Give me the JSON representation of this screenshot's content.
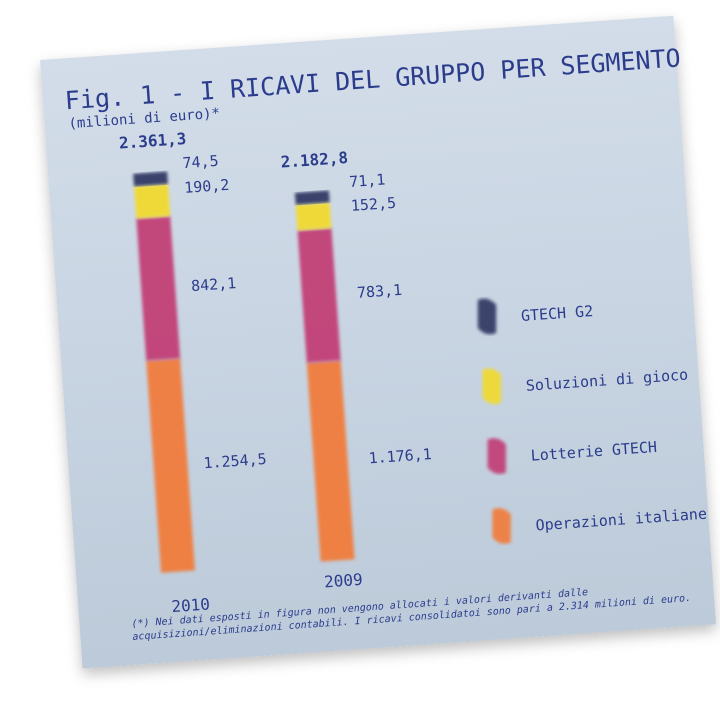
{
  "title": "Fig. 1 - I RICAVI DEL GRUPPO PER SEGMENTO",
  "subtitle": "(milioni di euro)*",
  "footnote_line1": "(*) Nei dati esposti in figura non vengono allocati i valori derivanti dalle",
  "footnote_line2": "acquisizioni/eliminazioni contabili. I ricavi consolidatoi sono pari a 2.314 milioni di euro.",
  "colors": {
    "title": "#2b3c8c",
    "gtech_g2": "#2e3560",
    "soluzioni_di_gioco": "#f2da2c",
    "lotterie_gtech": "#c23a73",
    "operazioni_italiane": "#f27a38"
  },
  "chart_data": {
    "type": "bar",
    "stacked": true,
    "orientation": "vertical",
    "title": "Fig. 1 - I RICAVI DEL GRUPPO PER SEGMENTO",
    "subtitle": "(milioni di euro)*",
    "categories": [
      "2010",
      "2009"
    ],
    "totals": [
      "2.361,3",
      "2.182,8"
    ],
    "total_values": [
      2361.3,
      2182.8
    ],
    "series": [
      {
        "name": "Operazioni italiane",
        "values": [
          1254.5,
          1176.1
        ],
        "labels": [
          "1.254,5",
          "1.176,1"
        ],
        "color": "#f27a38"
      },
      {
        "name": "Lotterie GTECH",
        "values": [
          842.1,
          783.1
        ],
        "labels": [
          "842,1",
          "783,1"
        ],
        "color": "#c23a73"
      },
      {
        "name": "Soluzioni di gioco",
        "values": [
          190.2,
          152.5
        ],
        "labels": [
          "190,2",
          "152,5"
        ],
        "color": "#f2da2c"
      },
      {
        "name": "GTECH G2",
        "values": [
          74.5,
          71.1
        ],
        "labels": [
          "74,5",
          "71,1"
        ],
        "color": "#2e3560"
      }
    ],
    "legend_position": "right",
    "grid": false
  }
}
